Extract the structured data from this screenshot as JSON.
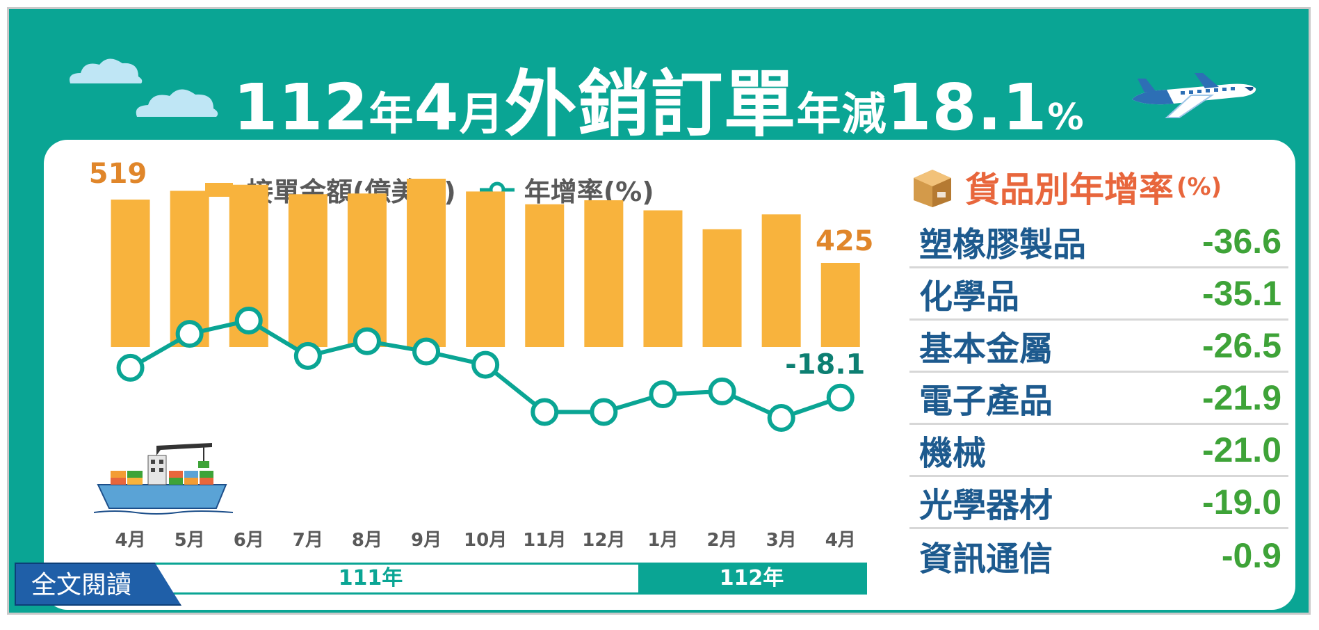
{
  "title": {
    "year": "112",
    "year_unit": "年",
    "month": "4",
    "month_unit": "月",
    "subject": "外銷訂單",
    "change_label": "年減",
    "change_value": "18.1",
    "percent": "%"
  },
  "legend": {
    "bar_label": "接單金額(億美元)",
    "line_label": "年增率(%)"
  },
  "year_bar": {
    "y111": "111年",
    "y112": "112年"
  },
  "chart_data": {
    "type": "bar",
    "title": "112年4月外銷訂單年減18.1%",
    "categories": [
      "4月",
      "5月",
      "6月",
      "7月",
      "8月",
      "9月",
      "10月",
      "11月",
      "12月",
      "1月",
      "2月",
      "3月",
      "4月"
    ],
    "series": [
      {
        "name": "接單金額(億美元)",
        "type": "bar",
        "values": [
          519,
          532,
          541,
          527,
          528,
          550,
          531,
          512,
          518,
          503,
          475,
          497,
          425
        ]
      },
      {
        "name": "年增率(%)",
        "type": "line",
        "values": [
          -8.0,
          3.5,
          8.0,
          -4.0,
          1.0,
          -2.5,
          -7.0,
          -23.0,
          -23.0,
          -17.0,
          -16.0,
          -25.0,
          -18.1
        ]
      }
    ],
    "bar_labels": {
      "first": "519",
      "last": "425"
    },
    "line_labels": {
      "last": "-18.1"
    }
  },
  "categories_panel": {
    "title": "貨品別年增率",
    "unit": "(%)",
    "items": [
      {
        "name": "塑橡膠製品",
        "value": "-36.6"
      },
      {
        "name": "化學品",
        "value": "-35.1"
      },
      {
        "name": "基本金屬",
        "value": "-26.5"
      },
      {
        "name": "電子產品",
        "value": "-21.9"
      },
      {
        "name": "機械",
        "value": "-21.0"
      },
      {
        "name": "光學器材",
        "value": "-19.0"
      },
      {
        "name": "資訊通信",
        "value": "-0.9"
      }
    ]
  },
  "read_more": "全文閱讀",
  "colors": {
    "bg": "#0aa594",
    "bar": "#f8b33d",
    "line": "#0aa594",
    "title_cat": "#e8663c",
    "cat_name": "#1d5a8e",
    "cat_val": "#3ea338",
    "read_btn": "#1f5fa8"
  }
}
